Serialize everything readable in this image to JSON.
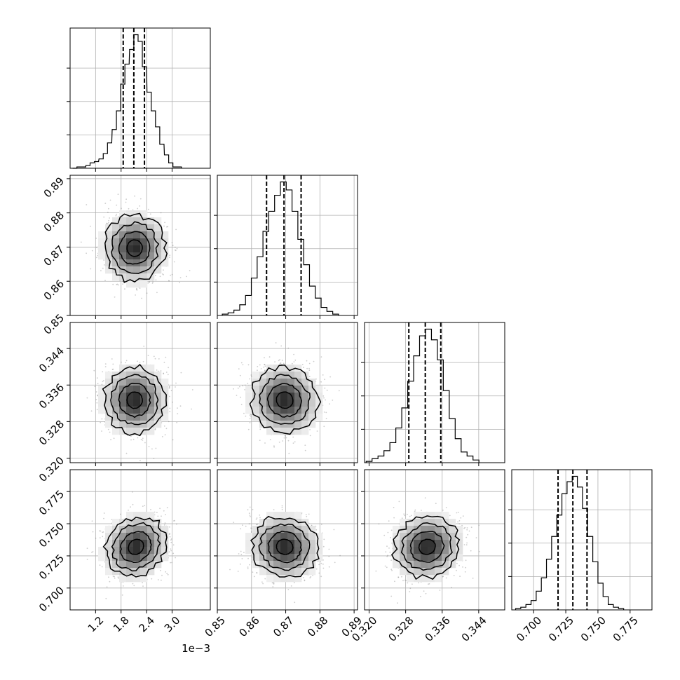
{
  "chart_data": {
    "type": "corner",
    "parameters": [
      {
        "range": [
          0.0006,
          0.0039
        ],
        "ticks": [
          0.0012,
          0.0018,
          0.0024,
          0.003
        ],
        "tick_labels": [
          "1.2",
          "1.8",
          "2.4",
          "3.0"
        ],
        "offset_label": "1e−3",
        "quantiles": [
          0.00185,
          0.0021,
          0.00235
        ],
        "hist": [
          {
            "x": 0.00071,
            "h": 0.0
          },
          {
            "x": 0.00081,
            "h": 0.01
          },
          {
            "x": 0.00092,
            "h": 0.01
          },
          {
            "x": 0.00102,
            "h": 0.02
          },
          {
            "x": 0.00112,
            "h": 0.04
          },
          {
            "x": 0.00122,
            "h": 0.05
          },
          {
            "x": 0.00133,
            "h": 0.07
          },
          {
            "x": 0.00143,
            "h": 0.11
          },
          {
            "x": 0.00153,
            "h": 0.19
          },
          {
            "x": 0.00164,
            "h": 0.29
          },
          {
            "x": 0.00174,
            "h": 0.43
          },
          {
            "x": 0.00184,
            "h": 0.63
          },
          {
            "x": 0.00194,
            "h": 0.78
          },
          {
            "x": 0.00205,
            "h": 0.89
          },
          {
            "x": 0.00215,
            "h": 1.0
          },
          {
            "x": 0.00225,
            "h": 0.95
          },
          {
            "x": 0.00235,
            "h": 0.76
          },
          {
            "x": 0.00246,
            "h": 0.57
          },
          {
            "x": 0.00256,
            "h": 0.43
          },
          {
            "x": 0.00266,
            "h": 0.31
          },
          {
            "x": 0.00276,
            "h": 0.18
          },
          {
            "x": 0.00287,
            "h": 0.1
          },
          {
            "x": 0.00297,
            "h": 0.04
          },
          {
            "x": 0.00307,
            "h": 0.01
          },
          {
            "x": 0.00317,
            "h": 0.01
          }
        ]
      },
      {
        "range": [
          0.85,
          0.891
        ],
        "ticks": [
          0.85,
          0.86,
          0.87,
          0.88,
          0.89
        ],
        "tick_labels": [
          "0.85",
          "0.86",
          "0.87",
          "0.88",
          "0.89"
        ],
        "quantiles": [
          0.8644,
          0.8695,
          0.8745
        ],
        "hist": [
          {
            "x": 0.8523,
            "h": 0.01
          },
          {
            "x": 0.854,
            "h": 0.02
          },
          {
            "x": 0.8557,
            "h": 0.04
          },
          {
            "x": 0.8574,
            "h": 0.08
          },
          {
            "x": 0.8591,
            "h": 0.15
          },
          {
            "x": 0.8608,
            "h": 0.28
          },
          {
            "x": 0.8625,
            "h": 0.44
          },
          {
            "x": 0.8642,
            "h": 0.63
          },
          {
            "x": 0.8659,
            "h": 0.78
          },
          {
            "x": 0.8676,
            "h": 0.9
          },
          {
            "x": 0.8693,
            "h": 1.0
          },
          {
            "x": 0.871,
            "h": 0.94
          },
          {
            "x": 0.8727,
            "h": 0.78
          },
          {
            "x": 0.8744,
            "h": 0.57
          },
          {
            "x": 0.8761,
            "h": 0.38
          },
          {
            "x": 0.8778,
            "h": 0.22
          },
          {
            "x": 0.8795,
            "h": 0.13
          },
          {
            "x": 0.8812,
            "h": 0.06
          },
          {
            "x": 0.8829,
            "h": 0.03
          },
          {
            "x": 0.8846,
            "h": 0.01
          }
        ]
      },
      {
        "range": [
          0.319,
          0.3497
        ],
        "ticks": [
          0.32,
          0.328,
          0.336,
          0.344
        ],
        "tick_labels": [
          "0.320",
          "0.328",
          "0.336",
          "0.344"
        ],
        "quantiles": [
          0.3287,
          0.3323,
          0.3357
        ],
        "hist": [
          {
            "x": 0.32,
            "h": 0.01
          },
          {
            "x": 0.3213,
            "h": 0.03
          },
          {
            "x": 0.3226,
            "h": 0.05
          },
          {
            "x": 0.3239,
            "h": 0.09
          },
          {
            "x": 0.3252,
            "h": 0.15
          },
          {
            "x": 0.3265,
            "h": 0.26
          },
          {
            "x": 0.3278,
            "h": 0.41
          },
          {
            "x": 0.3291,
            "h": 0.61
          },
          {
            "x": 0.3304,
            "h": 0.8
          },
          {
            "x": 0.3317,
            "h": 0.95
          },
          {
            "x": 0.333,
            "h": 1.0
          },
          {
            "x": 0.3343,
            "h": 0.92
          },
          {
            "x": 0.3356,
            "h": 0.77
          },
          {
            "x": 0.3369,
            "h": 0.54
          },
          {
            "x": 0.3382,
            "h": 0.33
          },
          {
            "x": 0.3395,
            "h": 0.18
          },
          {
            "x": 0.3408,
            "h": 0.08
          },
          {
            "x": 0.3421,
            "h": 0.05
          },
          {
            "x": 0.3434,
            "h": 0.02
          }
        ]
      },
      {
        "range": [
          0.683,
          0.792
        ],
        "ticks": [
          0.7,
          0.725,
          0.75,
          0.775
        ],
        "tick_labels": [
          "0.700",
          "0.725",
          "0.750",
          "0.775"
        ],
        "quantiles": [
          0.719,
          0.7305,
          0.7415
        ],
        "hist": [
          {
            "x": 0.688,
            "h": 0.01
          },
          {
            "x": 0.692,
            "h": 0.02
          },
          {
            "x": 0.696,
            "h": 0.04
          },
          {
            "x": 0.7,
            "h": 0.07
          },
          {
            "x": 0.704,
            "h": 0.14
          },
          {
            "x": 0.708,
            "h": 0.24
          },
          {
            "x": 0.712,
            "h": 0.38
          },
          {
            "x": 0.716,
            "h": 0.55
          },
          {
            "x": 0.72,
            "h": 0.71
          },
          {
            "x": 0.724,
            "h": 0.87
          },
          {
            "x": 0.728,
            "h": 0.96
          },
          {
            "x": 0.732,
            "h": 1.0
          },
          {
            "x": 0.736,
            "h": 0.92
          },
          {
            "x": 0.74,
            "h": 0.76
          },
          {
            "x": 0.744,
            "h": 0.55
          },
          {
            "x": 0.748,
            "h": 0.36
          },
          {
            "x": 0.752,
            "h": 0.2
          },
          {
            "x": 0.756,
            "h": 0.1
          },
          {
            "x": 0.76,
            "h": 0.04
          },
          {
            "x": 0.764,
            "h": 0.02
          },
          {
            "x": 0.768,
            "h": 0.01
          }
        ]
      }
    ],
    "hist_ylim": [
      0,
      1.05
    ],
    "hist_yticks": [
      0.25,
      0.5,
      0.75
    ],
    "joint": [
      {
        "row": 1,
        "col": 0,
        "mean": [
          0.00212,
          0.8697
        ],
        "sd": [
          0.00036,
          0.0048
        ],
        "corr": 0.0
      },
      {
        "row": 2,
        "col": 0,
        "mean": [
          0.00212,
          0.3327
        ],
        "sd": [
          0.00036,
          0.0036
        ],
        "corr": 0.0
      },
      {
        "row": 2,
        "col": 1,
        "mean": [
          0.8697,
          0.3327
        ],
        "sd": [
          0.0048,
          0.0036
        ],
        "corr": -0.05
      },
      {
        "row": 3,
        "col": 0,
        "mean": [
          0.00215,
          0.732
        ],
        "sd": [
          0.00036,
          0.0118
        ],
        "corr": 0.15
      },
      {
        "row": 3,
        "col": 1,
        "mean": [
          0.8697,
          0.732
        ],
        "sd": [
          0.0048,
          0.0118
        ],
        "corr": -0.05
      },
      {
        "row": 3,
        "col": 2,
        "mean": [
          0.3327,
          0.732
        ],
        "sd": [
          0.0036,
          0.0118
        ],
        "corr": 0.08
      }
    ],
    "contour_levels_sigma": [
      0.5,
      1.0,
      1.5,
      2.0
    ],
    "grid": true,
    "colors": {
      "line": "#000000",
      "points": "#6f6f6f",
      "grid": "#b0b0b0",
      "fill_dark": "#222222",
      "fill_light": "#ffffff"
    }
  }
}
